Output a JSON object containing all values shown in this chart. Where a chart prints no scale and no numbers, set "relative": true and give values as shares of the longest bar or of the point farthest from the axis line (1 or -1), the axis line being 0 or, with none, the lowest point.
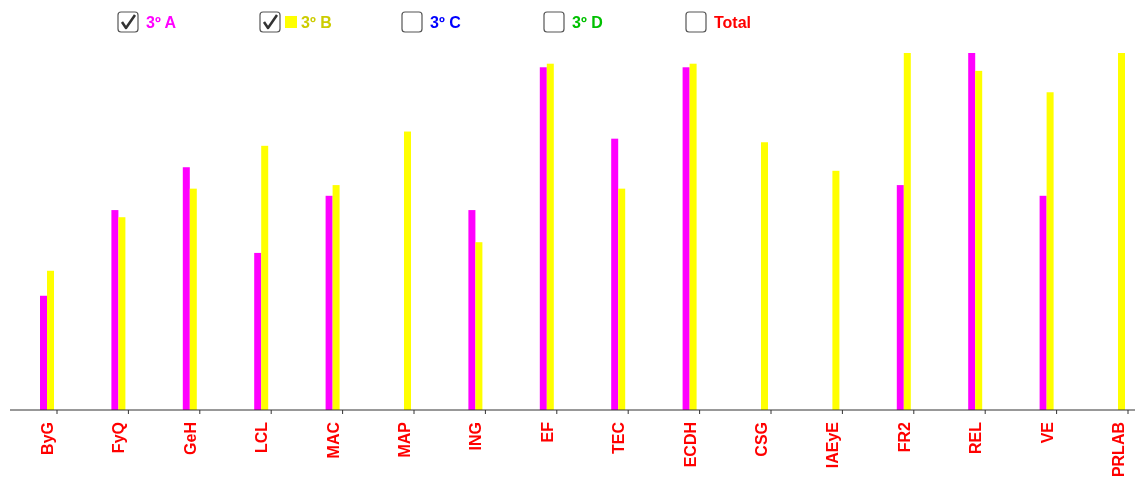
{
  "chart_data": {
    "type": "bar",
    "relative": true,
    "legend": "top",
    "categories": [
      "ByG",
      "FyQ",
      "GeH",
      "LCL",
      "MAC",
      "MAP",
      "ING",
      "EF",
      "TEC",
      "ECDH",
      "CSG",
      "IAEyE",
      "FR2",
      "REL",
      "VE",
      "PRLAB"
    ],
    "series": [
      {
        "name": "3º A",
        "color": "#ff00ff",
        "values": [
          0.32,
          0.56,
          0.68,
          0.44,
          0.6,
          null,
          0.56,
          0.96,
          0.76,
          0.96,
          null,
          null,
          0.63,
          1,
          0.6,
          null
        ]
      },
      {
        "name": "3º B",
        "color": "#ffff00",
        "values": [
          0.39,
          0.54,
          0.62,
          0.74,
          0.63,
          0.78,
          0.47,
          0.97,
          0.62,
          0.97,
          0.75,
          0.67,
          1,
          0.95,
          0.89,
          1
        ]
      },
      {
        "name": "3º C",
        "values": [
          null,
          null,
          null,
          null,
          null,
          null,
          null,
          null,
          null,
          null,
          null,
          null,
          null,
          null,
          null,
          null
        ]
      },
      {
        "name": "3º D",
        "values": [
          null,
          null,
          null,
          null,
          null,
          null,
          null,
          null,
          null,
          null,
          null,
          null,
          null,
          null,
          null,
          null
        ]
      },
      {
        "name": "Total",
        "values": [
          null,
          null,
          null,
          null,
          null,
          null,
          null,
          null,
          null,
          null,
          null,
          null,
          null,
          null,
          null,
          null
        ]
      }
    ]
  }
}
